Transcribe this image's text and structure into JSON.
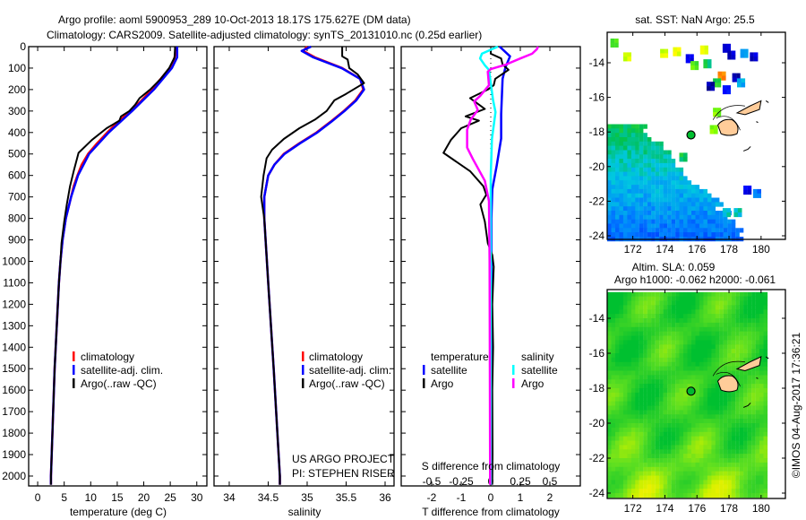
{
  "title_line1": "Argo profile: aoml 5900953_289 10-Oct-2013 18.17S 175.627E (DM data)",
  "title_line2": "Climatology: CARS2009. Satellite-adjusted climatology: synTS_20131010.nc (0.25d earlier)",
  "credit": "©IMOS 04-Aug-2017 17:36:21",
  "colors": {
    "climatology": "#ff0000",
    "satellite": "#0000ff",
    "argo": "#000000",
    "sal_satellite": "#00ffff",
    "sal_argo": "#ff00ff",
    "land": "#ffcc99"
  },
  "chart_data": [
    {
      "id": "temperature",
      "type": "line",
      "xlabel": "temperature (deg C)",
      "xlim": [
        -1.7,
        31.9
      ],
      "ylim": [
        0,
        2046
      ],
      "xticks": [
        0,
        5,
        10,
        15,
        20,
        25,
        30
      ],
      "yticks": [
        0,
        100,
        200,
        300,
        400,
        500,
        600,
        700,
        800,
        900,
        1000,
        1100,
        1200,
        1300,
        1400,
        1500,
        1600,
        1700,
        1800,
        1900,
        2000
      ],
      "legend": [
        "climatology",
        "satellite-adj. clim.",
        "Argo(..raw -QC)"
      ],
      "series": [
        {
          "name": "climatology",
          "color": "#ff0000",
          "points": [
            [
              0,
              26.0
            ],
            [
              30,
              26.0
            ],
            [
              60,
              25.7
            ],
            [
              100,
              24.9
            ],
            [
              150,
              23.2
            ],
            [
              200,
              21.5
            ],
            [
              250,
              19.6
            ],
            [
              300,
              17.5
            ],
            [
              350,
              15.2
            ],
            [
              400,
              13.1
            ],
            [
              450,
              11.2
            ],
            [
              500,
              9.5
            ],
            [
              550,
              8.3
            ],
            [
              600,
              7.5
            ],
            [
              650,
              6.8
            ],
            [
              700,
              6.3
            ],
            [
              800,
              5.3
            ],
            [
              900,
              4.7
            ],
            [
              1000,
              4.3
            ],
            [
              1100,
              4.0
            ],
            [
              1500,
              3.2
            ],
            [
              2000,
              2.5
            ],
            [
              2040,
              2.5
            ]
          ]
        },
        {
          "name": "satellite-adj. clim.",
          "color": "#0000ff",
          "points": [
            [
              0,
              26.3
            ],
            [
              50,
              26.3
            ],
            [
              100,
              25.3
            ],
            [
              200,
              21.9
            ],
            [
              300,
              17.8
            ],
            [
              400,
              13.4
            ],
            [
              500,
              9.7
            ],
            [
              600,
              7.6
            ],
            [
              700,
              6.3
            ],
            [
              800,
              5.3
            ],
            [
              900,
              4.7
            ],
            [
              1000,
              4.3
            ],
            [
              1100,
              4.0
            ],
            [
              1500,
              3.2
            ],
            [
              2000,
              2.5
            ],
            [
              2040,
              2.5
            ]
          ]
        },
        {
          "name": "Argo(..raw -QC)",
          "color": "#000000",
          "points": [
            [
              0,
              25.9
            ],
            [
              50,
              25.8
            ],
            [
              100,
              24.8
            ],
            [
              150,
              23.2
            ],
            [
              200,
              21.2
            ],
            [
              240,
              19.2
            ],
            [
              270,
              18.4
            ],
            [
              300,
              17.3
            ],
            [
              325,
              15.7
            ],
            [
              345,
              15.4
            ],
            [
              380,
              13.0
            ],
            [
              435,
              10.2
            ],
            [
              495,
              7.7
            ],
            [
              580,
              6.8
            ],
            [
              650,
              6.1
            ],
            [
              735,
              5.5
            ],
            [
              815,
              5.0
            ],
            [
              915,
              4.5
            ],
            [
              1000,
              4.3
            ],
            [
              1100,
              4.0
            ],
            [
              1500,
              3.2
            ],
            [
              2000,
              2.5
            ],
            [
              2040,
              2.5
            ]
          ]
        }
      ]
    },
    {
      "id": "salinity",
      "type": "line",
      "xlabel": "salinity",
      "xlim": [
        33.805,
        36.115
      ],
      "ylim": [
        0,
        2046
      ],
      "xticks": [
        34,
        34.5,
        35,
        35.5,
        36
      ],
      "xticklabels": [
        "34",
        "34.5",
        "35",
        "35.5",
        "36"
      ],
      "legend": [
        "climatology",
        "satellite-adj. clim.",
        "Argo(..raw -QC)"
      ],
      "annotations": [
        "US ARGO PROJECT",
        "PI: STEPHEN RISER"
      ],
      "series": [
        {
          "name": "climatology",
          "color": "#ff0000",
          "points": [
            [
              0,
              35.0
            ],
            [
              20,
              34.95
            ],
            [
              50,
              35.1
            ],
            [
              100,
              35.45
            ],
            [
              150,
              35.68
            ],
            [
              200,
              35.72
            ],
            [
              250,
              35.62
            ],
            [
              300,
              35.47
            ],
            [
              350,
              35.3
            ],
            [
              400,
              35.12
            ],
            [
              450,
              34.9
            ],
            [
              500,
              34.7
            ],
            [
              550,
              34.58
            ],
            [
              600,
              34.5
            ],
            [
              700,
              34.45
            ],
            [
              800,
              34.45
            ],
            [
              1100,
              34.5
            ],
            [
              1500,
              34.57
            ],
            [
              2000,
              34.65
            ],
            [
              2040,
              34.65
            ]
          ]
        },
        {
          "name": "satellite-adj. clim.",
          "color": "#0000ff",
          "points": [
            [
              0,
              35.05
            ],
            [
              20,
              34.93
            ],
            [
              50,
              35.08
            ],
            [
              100,
              35.44
            ],
            [
              150,
              35.68
            ],
            [
              200,
              35.73
            ],
            [
              250,
              35.63
            ],
            [
              300,
              35.48
            ],
            [
              350,
              35.31
            ],
            [
              400,
              35.13
            ],
            [
              450,
              34.91
            ],
            [
              500,
              34.71
            ],
            [
              550,
              34.58
            ],
            [
              600,
              34.5
            ],
            [
              700,
              34.45
            ],
            [
              800,
              34.45
            ],
            [
              1100,
              34.5
            ],
            [
              1500,
              34.57
            ],
            [
              2000,
              34.65
            ],
            [
              2040,
              34.65
            ]
          ]
        },
        {
          "name": "Argo(..raw -QC)",
          "color": "#000000",
          "points": [
            [
              0,
              35.45
            ],
            [
              45,
              35.45
            ],
            [
              60,
              35.52
            ],
            [
              100,
              35.54
            ],
            [
              130,
              35.65
            ],
            [
              170,
              35.73
            ],
            [
              220,
              35.5
            ],
            [
              250,
              35.35
            ],
            [
              300,
              35.25
            ],
            [
              340,
              35.1
            ],
            [
              380,
              34.9
            ],
            [
              430,
              34.7
            ],
            [
              480,
              34.55
            ],
            [
              520,
              34.48
            ],
            [
              600,
              34.44
            ],
            [
              700,
              34.41
            ],
            [
              800,
              34.45
            ],
            [
              1100,
              34.5
            ],
            [
              1500,
              34.57
            ],
            [
              2000,
              34.65
            ],
            [
              2040,
              34.65
            ]
          ]
        }
      ]
    },
    {
      "id": "difference",
      "type": "line",
      "xlabel": "T difference from climatology",
      "xlabel2": "S difference from climatology",
      "xlim": [
        -3.03,
        3.03
      ],
      "ylim": [
        0,
        2046
      ],
      "xticks": [
        -2,
        -1,
        0,
        1,
        2
      ],
      "xticklabels": [
        "-2",
        "-1",
        "0",
        "1",
        "2"
      ],
      "sticks": [
        -0.5,
        -0.25,
        0,
        0.25,
        0.5
      ],
      "sticklabels": [
        "-0.5",
        "-0.25",
        "0",
        "0.25",
        "0.5"
      ],
      "legend_headers": [
        "temperature",
        "salinity"
      ],
      "legend": {
        "temperature": [
          "satellite",
          "Argo"
        ],
        "salinity": [
          "satellite",
          "Argo"
        ]
      },
      "series": [
        {
          "name": "T satellite",
          "color": "#0000ff",
          "unit": "T",
          "points": [
            [
              0,
              0.3
            ],
            [
              45,
              0.65
            ],
            [
              95,
              0.5
            ],
            [
              150,
              0.4
            ],
            [
              315,
              0.35
            ],
            [
              428,
              0.35
            ],
            [
              555,
              0.2
            ],
            [
              665,
              0.05
            ],
            [
              800,
              0.02
            ],
            [
              2040,
              0.02
            ]
          ]
        },
        {
          "name": "T Argo",
          "color": "#000000",
          "unit": "T",
          "points": [
            [
              10,
              0
            ],
            [
              33,
              0
            ],
            [
              55,
              0.35
            ],
            [
              83,
              0.4
            ],
            [
              108,
              0.6
            ],
            [
              150,
              0.15
            ],
            [
              180,
              0.1
            ],
            [
              200,
              -0.1
            ],
            [
              240,
              -0.7
            ],
            [
              270,
              -0.4
            ],
            [
              290,
              -0.2
            ],
            [
              325,
              -0.85
            ],
            [
              345,
              -0.4
            ],
            [
              380,
              -1.0
            ],
            [
              435,
              -1.35
            ],
            [
              495,
              -1.6
            ],
            [
              580,
              -0.7
            ],
            [
              650,
              -0.25
            ],
            [
              690,
              -0.15
            ],
            [
              735,
              -0.35
            ],
            [
              815,
              -0.2
            ],
            [
              915,
              -0.1
            ],
            [
              970,
              0.05
            ],
            [
              1025,
              0.1
            ],
            [
              1200,
              0.05
            ],
            [
              1400,
              0.08
            ],
            [
              1600,
              0.05
            ],
            [
              1900,
              0.06
            ],
            [
              2040,
              0.05
            ]
          ]
        },
        {
          "name": "S satellite",
          "color": "#00ffff",
          "unit": "S",
          "points": [
            [
              0,
              0.06
            ],
            [
              33,
              -0.075
            ],
            [
              55,
              -0.09
            ],
            [
              87,
              -0.05
            ],
            [
              108,
              -0.015
            ],
            [
              250,
              0.02
            ],
            [
              305,
              0.04
            ],
            [
              430,
              0.01
            ],
            [
              600,
              0
            ],
            [
              2040,
              0
            ]
          ]
        },
        {
          "name": "S Argo",
          "color": "#ff00ff",
          "unit": "S",
          "points": [
            [
              0,
              0.4
            ],
            [
              12,
              0.39
            ],
            [
              33,
              0.35
            ],
            [
              55,
              0.25
            ],
            [
              83,
              0.13
            ],
            [
              105,
              0
            ],
            [
              117,
              -0.025
            ],
            [
              180,
              -0.015
            ],
            [
              230,
              -0.09
            ],
            [
              255,
              -0.14
            ],
            [
              295,
              -0.11
            ],
            [
              340,
              -0.17
            ],
            [
              387,
              -0.2
            ],
            [
              470,
              -0.2
            ],
            [
              525,
              -0.15
            ],
            [
              625,
              -0.05
            ],
            [
              720,
              -0.015
            ],
            [
              1000,
              -0.01
            ],
            [
              2040,
              -0.005
            ]
          ]
        }
      ]
    },
    {
      "id": "sst_map",
      "type": "heatmap",
      "title": "sat. SST: NaN Argo: 25.5",
      "lon_range": [
        170.4,
        181.1
      ],
      "lat_range_south": [
        12.2,
        24.2
      ],
      "xticks": [
        172,
        174,
        176,
        178,
        180
      ],
      "yticklabels": [
        "-14",
        "-16",
        "-18",
        "-20",
        "-22",
        "-24"
      ],
      "argo_position": {
        "lon": 175.627,
        "lat": -18.17
      }
    },
    {
      "id": "sla_map",
      "type": "heatmap",
      "title": "Altim. SLA: 0.059",
      "subtitle": "Argo h1000: -0.062 h2000: -0.061",
      "lon_range": [
        170.4,
        181.1
      ],
      "lat_range_south": [
        12.4,
        24.3
      ],
      "xticks": [
        172,
        174,
        176,
        178,
        180
      ],
      "yticklabels": [
        "-14",
        "-16",
        "-18",
        "-20",
        "-22",
        "-24"
      ],
      "argo_position": {
        "lon": 175.627,
        "lat": -18.17
      }
    }
  ]
}
